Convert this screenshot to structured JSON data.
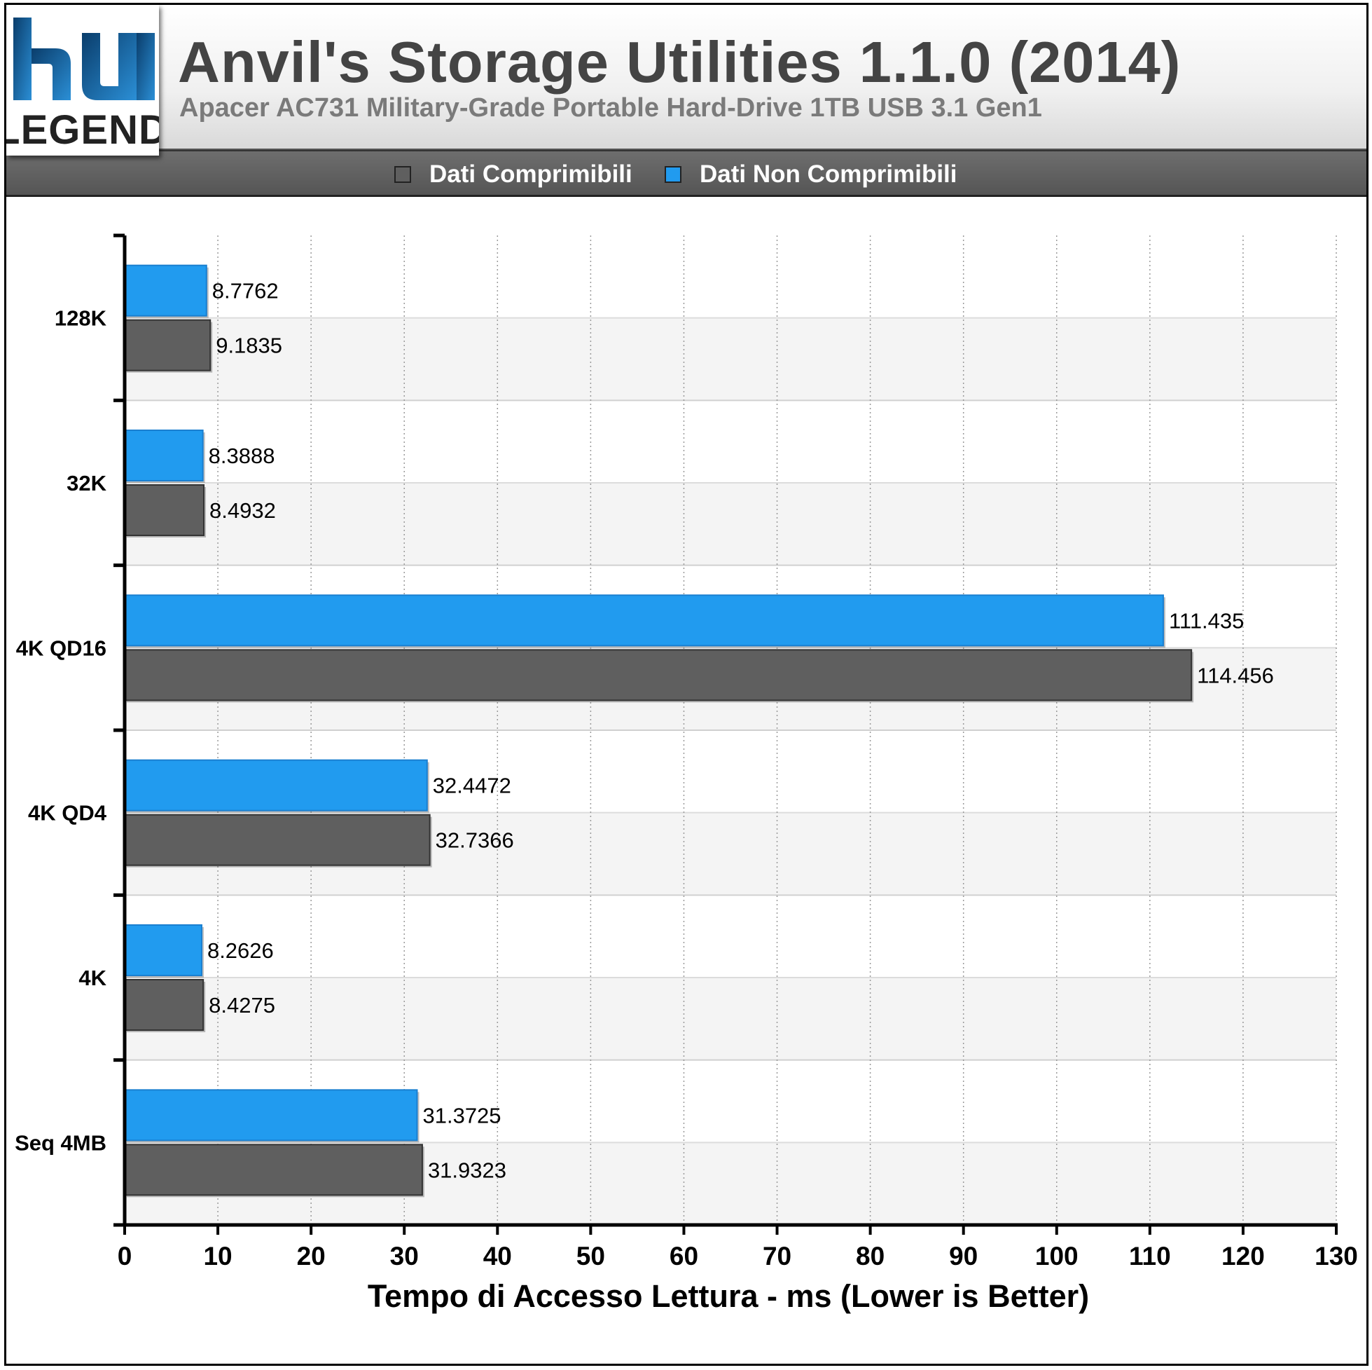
{
  "header": {
    "logo_text_top": "hu",
    "logo_text_bottom": "LEGEND",
    "title": "Anvil's Storage Utilities 1.1.0 (2014)",
    "subtitle": "Apacer AC731 Military-Grade Portable Hard-Drive 1TB USB 3.1 Gen1"
  },
  "legend": {
    "items": [
      {
        "label": "Dati Comprimibili",
        "color": "#5f5f5f"
      },
      {
        "label": "Dati Non Comprimibili",
        "color": "#219bef"
      }
    ]
  },
  "colors": {
    "compressible": "#5f5f5f",
    "non_compressible": "#219bef",
    "band_even": "#ffffff",
    "band_odd": "#f4f4f4"
  },
  "chart_data": {
    "type": "bar",
    "orientation": "horizontal",
    "xlabel": "Tempo di Accesso Lettura - ms (Lower is Better)",
    "ylabel": "",
    "xlim": [
      0,
      130
    ],
    "xticks": [
      0,
      10,
      20,
      30,
      40,
      50,
      60,
      70,
      80,
      90,
      100,
      110,
      120,
      130
    ],
    "grid": true,
    "legend_position": "top",
    "categories": [
      "128K",
      "32K",
      "4K QD16",
      "4K QD4",
      "4K",
      "Seq 4MB"
    ],
    "series": [
      {
        "name": "Dati Non Comprimibili",
        "color": "#219bef",
        "values": [
          8.7762,
          8.3888,
          111.435,
          32.4472,
          8.2626,
          31.3725
        ],
        "labels": [
          "8.7762",
          "8.3888",
          "111.435",
          "32.4472",
          "8.2626",
          "31.3725"
        ]
      },
      {
        "name": "Dati Comprimibili",
        "color": "#5f5f5f",
        "values": [
          9.1835,
          8.4932,
          114.456,
          32.7366,
          8.4275,
          31.9323
        ],
        "labels": [
          "9.1835",
          "8.4932",
          "114.456",
          "32.7366",
          "8.4275",
          "31.9323"
        ]
      }
    ]
  }
}
